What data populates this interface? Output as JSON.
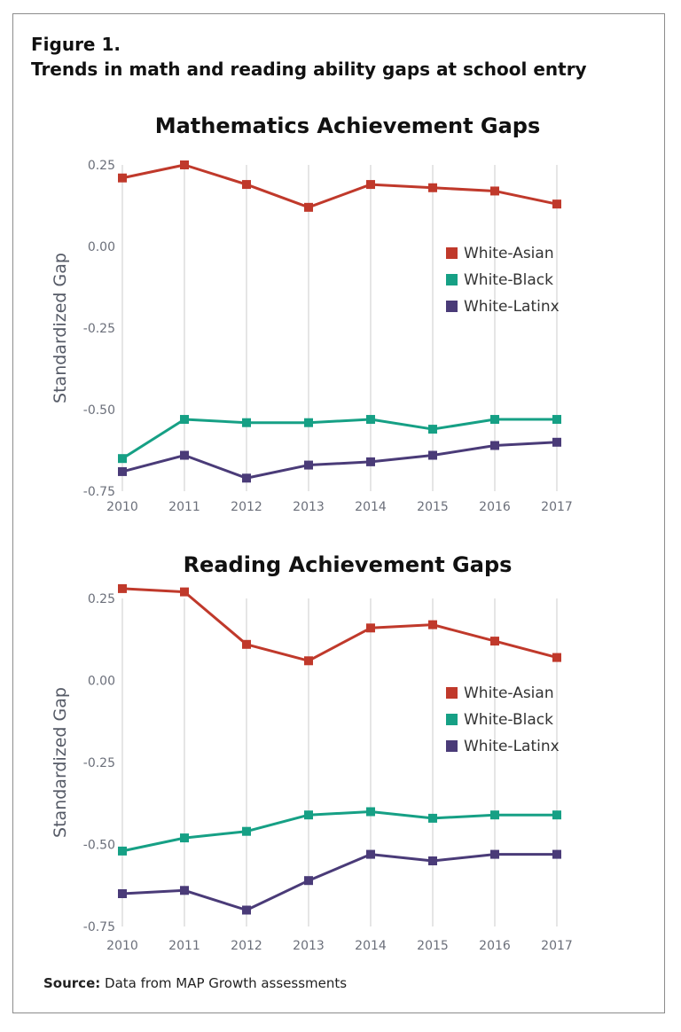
{
  "figure": {
    "label": "Figure 1.",
    "title": "Trends in math and reading ability gaps at school entry"
  },
  "source": {
    "label": "Source:",
    "text": "Data from MAP Growth assessments"
  },
  "chart_data": [
    {
      "type": "line",
      "title": "Mathematics Achievement Gaps",
      "xlabel": "",
      "ylabel": "Standardized Gap",
      "x": [
        "2010",
        "2011",
        "2012",
        "2013",
        "2014",
        "2015",
        "2016",
        "2017"
      ],
      "ylim": [
        -0.75,
        0.25
      ],
      "yticks": [
        "0.25",
        "0.00",
        "-0.25",
        "-0.50",
        "-0.75"
      ],
      "ytick_values": [
        0.25,
        0.0,
        -0.25,
        -0.5,
        -0.75
      ],
      "grid": "vertical",
      "legend_position": "right",
      "series": [
        {
          "name": "White-Asian",
          "color": "#c0392b",
          "values": [
            0.21,
            0.25,
            0.19,
            0.12,
            0.19,
            0.18,
            0.17,
            0.13
          ]
        },
        {
          "name": "White-Black",
          "color": "#16a085",
          "values": [
            -0.65,
            -0.53,
            -0.54,
            -0.54,
            -0.53,
            -0.56,
            -0.53,
            -0.53
          ]
        },
        {
          "name": "White-Latinx",
          "color": "#4a3b78",
          "values": [
            -0.69,
            -0.64,
            -0.71,
            -0.67,
            -0.66,
            -0.64,
            -0.61,
            -0.6
          ]
        }
      ]
    },
    {
      "type": "line",
      "title": "Reading Achievement Gaps",
      "xlabel": "",
      "ylabel": "Standardized Gap",
      "x": [
        "2010",
        "2011",
        "2012",
        "2013",
        "2014",
        "2015",
        "2016",
        "2017"
      ],
      "ylim": [
        -0.75,
        0.25
      ],
      "yticks": [
        "0.25",
        "0.00",
        "-0.25",
        "-0.50",
        "-0.75"
      ],
      "ytick_values": [
        0.25,
        0.0,
        -0.25,
        -0.5,
        -0.75
      ],
      "grid": "vertical",
      "legend_position": "right",
      "series": [
        {
          "name": "White-Asian",
          "color": "#c0392b",
          "values": [
            0.28,
            0.27,
            0.11,
            0.06,
            0.16,
            0.17,
            0.12,
            0.07
          ]
        },
        {
          "name": "White-Black",
          "color": "#16a085",
          "values": [
            -0.52,
            -0.48,
            -0.46,
            -0.41,
            -0.4,
            -0.42,
            -0.41,
            -0.41
          ]
        },
        {
          "name": "White-Latinx",
          "color": "#4a3b78",
          "values": [
            -0.65,
            -0.64,
            -0.7,
            -0.61,
            -0.53,
            -0.55,
            -0.53,
            -0.53
          ]
        }
      ]
    }
  ]
}
